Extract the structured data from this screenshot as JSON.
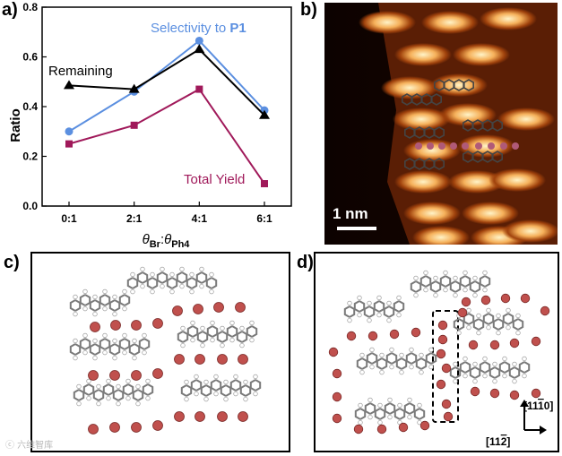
{
  "panels": {
    "a": "a)",
    "b": "b)",
    "c": "c)",
    "d": "d)"
  },
  "chart_data": {
    "type": "line",
    "categories": [
      "0:1",
      "2:1",
      "4:1",
      "6:1"
    ],
    "ylabel": "Ratio",
    "xlabel_parts": {
      "theta": "θ",
      "sub1": "Br",
      "colon": ":",
      "sub2": "Ph4"
    },
    "ylim": [
      0.0,
      0.8
    ],
    "yticks": [
      "0.0",
      "0.2",
      "0.4",
      "0.6",
      "0.8"
    ],
    "series": [
      {
        "name": "Selectivity to P1",
        "label_text": "Selectivity to ",
        "label_bold": "P1",
        "color": "#5b8fe0",
        "marker": "circle",
        "values": [
          0.3,
          0.46,
          0.665,
          0.385
        ]
      },
      {
        "name": "Remaining",
        "color": "#000000",
        "marker": "triangle",
        "values": [
          0.485,
          0.47,
          0.63,
          0.365
        ]
      },
      {
        "name": "Total Yield",
        "color": "#a0195a",
        "marker": "square",
        "values": [
          0.25,
          0.325,
          0.47,
          0.09
        ]
      }
    ]
  },
  "stm": {
    "scale_bar": "1 nm"
  },
  "lattice": {
    "dir_1": "[11",
    "dir_1_bar": "1",
    "dir_1_end": "0]",
    "dir_2": "[11",
    "dir_2_bar": "2",
    "dir_2_end": "]"
  },
  "colors": {
    "carbon": "#7a7a7a",
    "hydrogen": "#ffffff",
    "bromine": "#c0504d",
    "stm_bright": "#ffe3a0",
    "stm_dark": "#1a0500"
  },
  "watermark": "ⓒ 六维智库"
}
